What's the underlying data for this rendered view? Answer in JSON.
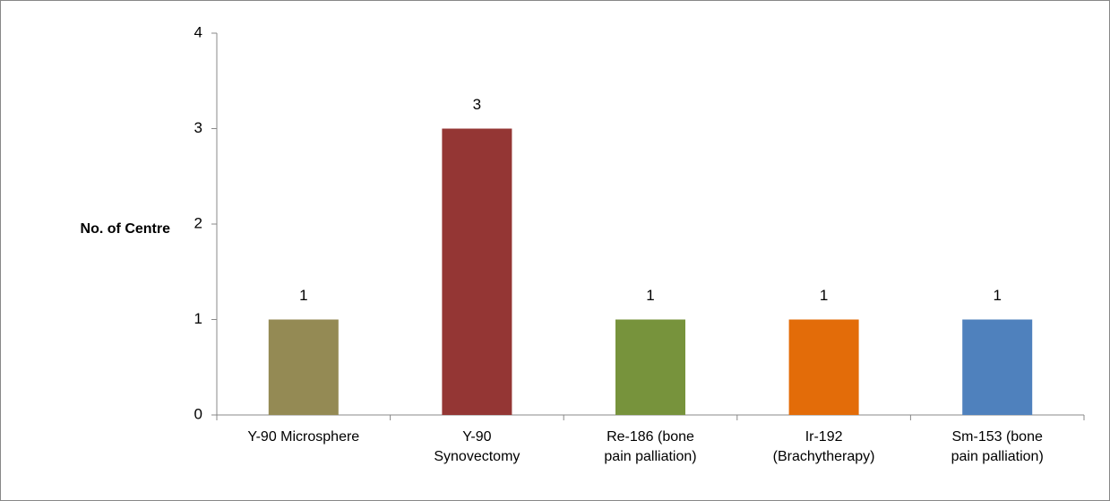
{
  "chart_data": {
    "type": "bar",
    "y_label": "No. of Centre",
    "categories": [
      "Y-90 Microsphere",
      "Y-90\nSynovectomy",
      "Re-186 (bone\npain  palliation)",
      "Ir-192\n(Brachytherapy)",
      "Sm-153 (bone\npain palliation)"
    ],
    "values": [
      1,
      3,
      1,
      1,
      1
    ],
    "colors": [
      "#948a54",
      "#943634",
      "#77933c",
      "#e36c09",
      "#4f81bd"
    ],
    "ylim": [
      0,
      4
    ],
    "yticks": [
      0,
      1,
      2,
      3,
      4
    ],
    "grid": false
  }
}
